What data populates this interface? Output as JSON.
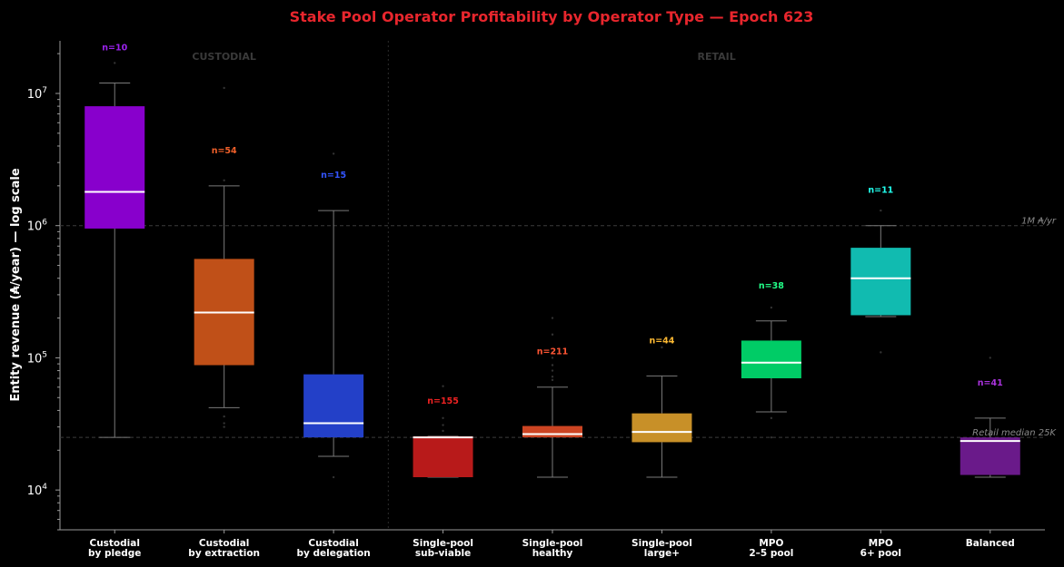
{
  "chart_data": {
    "type": "box",
    "title": "Stake Pool Operator Profitability by Operator Type — Epoch 623",
    "ylabel": "Entity revenue (₳/year) — log scale",
    "yscale": "log",
    "ylim": [
      5000,
      25000000
    ],
    "yticks": [
      {
        "value": 10000,
        "base": "10",
        "exp": "4"
      },
      {
        "value": 100000,
        "base": "10",
        "exp": "5"
      },
      {
        "value": 1000000,
        "base": "10",
        "exp": "6"
      },
      {
        "value": 10000000,
        "base": "10",
        "exp": "7"
      }
    ],
    "sections": [
      {
        "label": "CUSTODIAL",
        "from": 0,
        "to": 2
      },
      {
        "label": "RETAIL",
        "from": 3,
        "to": 8
      }
    ],
    "reference_lines": [
      {
        "value": 1000000,
        "label": "1M ₳/yr"
      },
      {
        "value": 25000,
        "label": "Retail median 25K"
      }
    ],
    "categories": [
      {
        "line1": "Custodial",
        "line2": "by pledge",
        "n_label": "n=10",
        "color": "#8800cc",
        "n_color": "#9b22ee",
        "whisker_low": 25000,
        "q1": 950000,
        "median": 1800000,
        "q3": 8000000,
        "whisker_high": 12000000,
        "outliers": [
          17000000
        ]
      },
      {
        "line1": "Custodial",
        "line2": "by extraction",
        "n_label": "n=54",
        "color": "#c05018",
        "n_color": "#f0602a",
        "whisker_low": 42000,
        "q1": 88000,
        "median": 220000,
        "q3": 560000,
        "whisker_high": 2000000,
        "outliers": [
          30000,
          32000,
          36000,
          2200000,
          11000000
        ]
      },
      {
        "line1": "Custodial",
        "line2": "by delegation",
        "n_label": "n=15",
        "color": "#2340c8",
        "n_color": "#3355ff",
        "whisker_low": 18000,
        "q1": 25000,
        "median": 32000,
        "q3": 75000,
        "whisker_high": 1300000,
        "outliers": [
          12500,
          3500000
        ]
      },
      {
        "line1": "Single-pool",
        "line2": "sub-viable",
        "n_label": "n=155",
        "color": "#b81a1a",
        "n_color": "#ee2222",
        "whisker_low": 12500,
        "q1": 12500,
        "median": 25000,
        "q3": 25500,
        "whisker_high": 25500,
        "outliers": [
          28000,
          31000,
          35000,
          61000
        ]
      },
      {
        "line1": "Single-pool",
        "line2": "healthy",
        "n_label": "n=211",
        "color": "#cc4422",
        "n_color": "#ff5533",
        "whisker_low": 12500,
        "q1": 25000,
        "median": 26500,
        "q3": 30500,
        "whisker_high": 60000,
        "outliers": [
          68000,
          72000,
          80000,
          88000,
          100000,
          110000,
          150000,
          200000
        ]
      },
      {
        "line1": "Single-pool",
        "line2": "large+",
        "n_label": "n=44",
        "color": "#c89028",
        "n_color": "#ffbb33",
        "whisker_low": 12500,
        "q1": 23000,
        "median": 27500,
        "q3": 38000,
        "whisker_high": 73000,
        "outliers": [
          120000
        ]
      },
      {
        "line1": "MPO",
        "line2": "2–5 pool",
        "n_label": "n=38",
        "color": "#00cc66",
        "n_color": "#22ff88",
        "whisker_low": 39000,
        "q1": 70000,
        "median": 92000,
        "q3": 135000,
        "whisker_high": 190000,
        "outliers": [
          25000,
          35000,
          240000
        ]
      },
      {
        "line1": "MPO",
        "line2": "6+ pool",
        "n_label": "n=11",
        "color": "#11bbb0",
        "n_color": "#22ffee",
        "whisker_low": 205000,
        "q1": 210000,
        "median": 400000,
        "q3": 680000,
        "whisker_high": 1000000,
        "outliers": [
          110000,
          1300000
        ]
      },
      {
        "line1": "Balanced",
        "line2": "",
        "n_label": "n=41",
        "color": "#6a1a8a",
        "n_color": "#aa33dd",
        "whisker_low": 12500,
        "q1": 13000,
        "median": 23500,
        "q3": 25000,
        "whisker_high": 35000,
        "outliers": [
          100000
        ]
      }
    ],
    "grid": false,
    "legend": "none"
  }
}
